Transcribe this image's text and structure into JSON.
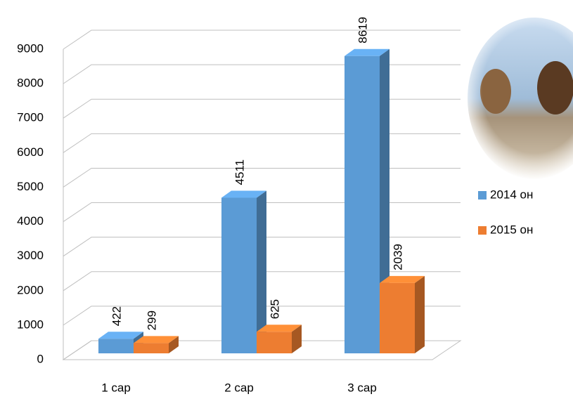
{
  "chart_data": {
    "type": "bar3d",
    "categories": [
      "1 сар",
      "2 сар",
      "3 сар"
    ],
    "series": [
      {
        "name": "2014 он",
        "color": "#5b9bd5",
        "values": [
          422,
          4511,
          8619
        ]
      },
      {
        "name": "2015 он",
        "color": "#ed7d31",
        "values": [
          299,
          625,
          2039
        ]
      }
    ],
    "ylim": [
      0,
      9000
    ],
    "yticks": [
      0,
      1000,
      2000,
      3000,
      4000,
      5000,
      6000,
      7000,
      8000,
      9000
    ],
    "grid": true,
    "legend": "right"
  }
}
